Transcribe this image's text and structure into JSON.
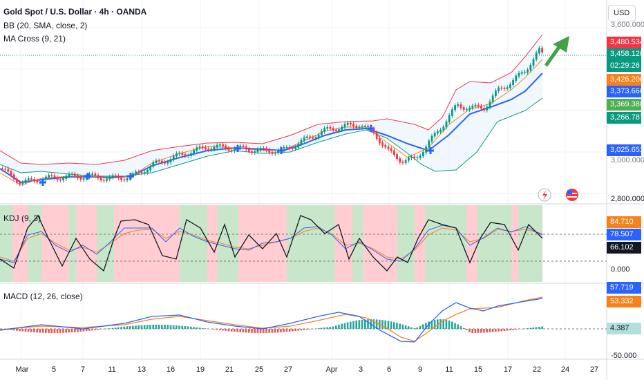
{
  "header": {
    "title": "Gold Spot / U.S. Dollar · 4h · OANDA",
    "bb_indicator": "BB (20, SMA, close, 2)",
    "ma_indicator": "MA Cross (9, 21)"
  },
  "kdj_indicator": "KDJ (9, 3)",
  "macd_indicator": "MACD (12, 26, close)",
  "currency_button": "USD",
  "price_axis": {
    "tags": [
      {
        "value": "3,480.534",
        "color": "#f23645"
      },
      {
        "value": "3,458.120",
        "color": "#089981"
      },
      {
        "value": "02:29:26",
        "color": "#089981"
      },
      {
        "value": "3,426.206",
        "color": "#f7821b"
      },
      {
        "value": "3,373.660",
        "color": "#2962ff"
      },
      {
        "value": "3,369.380",
        "color": "#4caf50"
      },
      {
        "value": "3,266.787",
        "color": "#089981"
      },
      {
        "value": "3,025.651",
        "color": "#2962ff"
      }
    ],
    "top_partial": "3,600.000",
    "mid_partial": "3,000.000",
    "bottom_tick": "2,800.000"
  },
  "kdj_axis": {
    "tags": [
      {
        "value": "84.710",
        "color": "#f7821b"
      },
      {
        "value": "78.507",
        "color": "#2962ff"
      },
      {
        "value": "66.102",
        "color": "#131722"
      }
    ],
    "tick": "0.000"
  },
  "macd_axis": {
    "tags": [
      {
        "value": "57.719",
        "color": "#2962ff"
      },
      {
        "value": "53.332",
        "color": "#f7821b"
      },
      {
        "value": "4.387",
        "color": "#b2dfdb"
      }
    ],
    "tick": "-50.000"
  },
  "x_axis_labels": [
    "Mar",
    "5",
    "7",
    "11",
    "13",
    "16",
    "19",
    "21",
    "25",
    "27",
    "Apr",
    "3",
    "6",
    "9",
    "11",
    "15",
    "17",
    "22",
    "24",
    "27"
  ],
  "colors": {
    "up": "#089981",
    "down": "#f23645",
    "bb": "#f23645",
    "bb_lower": "#089981",
    "fast_ma": "#f7821b",
    "slow_ma": "#2962ff",
    "kdj_j": "#131722"
  },
  "icons": [
    "lightning-icon",
    "us-flag-icon",
    "arrow-up-right-icon",
    "cross-marker-icon"
  ]
}
